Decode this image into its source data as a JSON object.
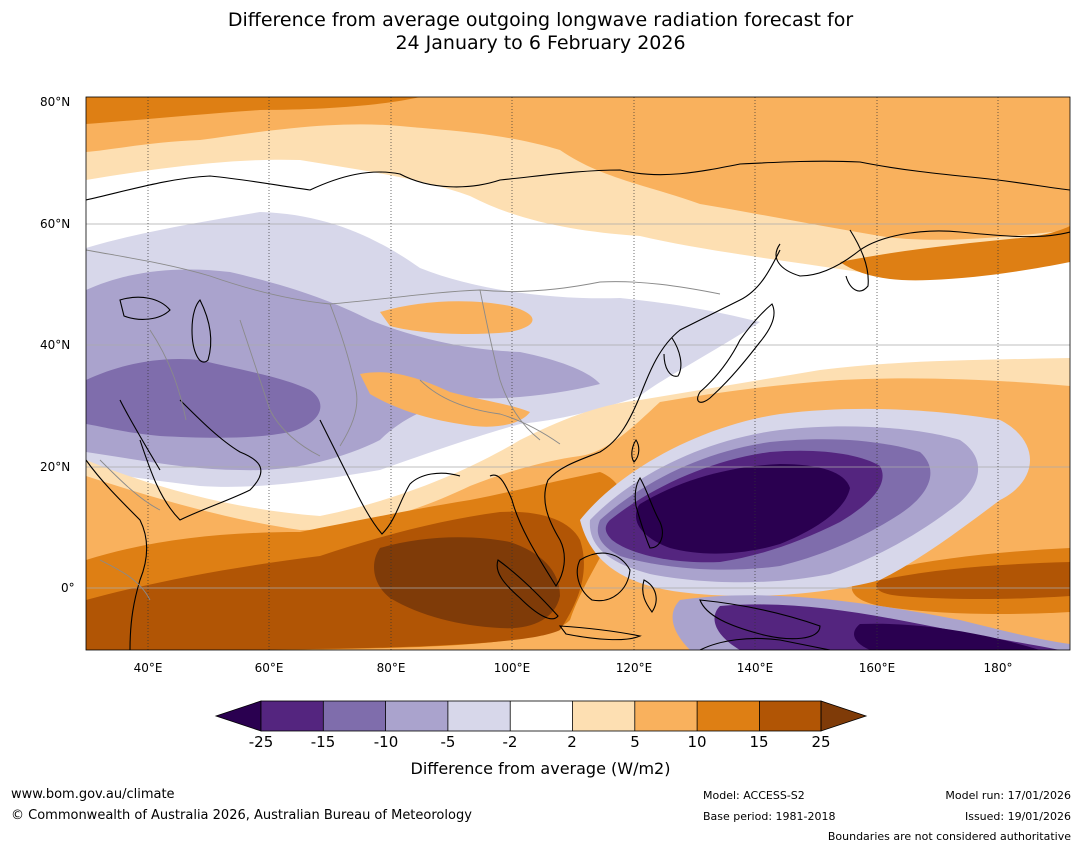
{
  "title": {
    "line1": "Difference from average outgoing longwave radiation forecast for",
    "line2": "24 January to 6 February 2026"
  },
  "map": {
    "region": "Asia and western Pacific",
    "lat_labels": [
      "80°N",
      "60°N",
      "40°N",
      "20°N",
      "0°"
    ],
    "lon_labels": [
      "40°E",
      "60°E",
      "80°E",
      "100°E",
      "120°E",
      "140°E",
      "160°E",
      "180°"
    ],
    "lat_range": [
      -10,
      80
    ],
    "lon_range": [
      30,
      192
    ],
    "colors": {
      "lt_neg25": "#2a0050",
      "neg25_15": "#54257f",
      "neg15_10": "#7f6dac",
      "neg10_5": "#aaa3cd",
      "neg5_2": "#d7d7ea",
      "neg2_2": "#ffffff",
      "p2_5": "#fddfb2",
      "p5_10": "#f9b15d",
      "p10_15": "#de7f14",
      "p15_25": "#b15505",
      "gt25": "#7f3b08",
      "coast": "#000000",
      "borders": "#8a8a8a",
      "grid": "#aaaaaa"
    },
    "anomaly_zones": [
      {
        "label": "Arctic Siberia positive anomaly",
        "category": "p5_10"
      },
      {
        "label": "Central Asia negative anomaly",
        "category": "neg10_5"
      },
      {
        "label": "Philippine Sea strong negative anomaly",
        "category": "lt_neg25"
      },
      {
        "label": "Indian Ocean and Maritime Continent strong positive anomaly",
        "category": "gt25"
      },
      {
        "label": "Equatorial central Pacific positive anomaly",
        "category": "p15_25"
      },
      {
        "label": "Banda Sea and northern Australia negative anomaly",
        "category": "neg25_15"
      }
    ]
  },
  "colorbar": {
    "ticks": [
      "-25",
      "-15",
      "-10",
      "-5",
      "-2",
      "2",
      "5",
      "10",
      "15",
      "25"
    ],
    "colors": [
      "#54257f",
      "#7f6dac",
      "#aaa3cd",
      "#d7d7ea",
      "#ffffff",
      "#fddfb2",
      "#f9b15d",
      "#de7f14",
      "#b15505"
    ],
    "under_color": "#2a0050",
    "over_color": "#7f3b08",
    "label": "Difference from average (W/m2)"
  },
  "footer": {
    "website": "www.bom.gov.au/climate",
    "copyright": "© Commonwealth of Australia 2026, Australian Bureau of Meteorology",
    "model": "Model: ACCESS-S2",
    "base_period": "Base period: 1981-2018",
    "model_run": "Model run: 17/01/2026",
    "issued": "Issued: 19/01/2026",
    "disclaimer": "Boundaries are not considered authoritative"
  }
}
